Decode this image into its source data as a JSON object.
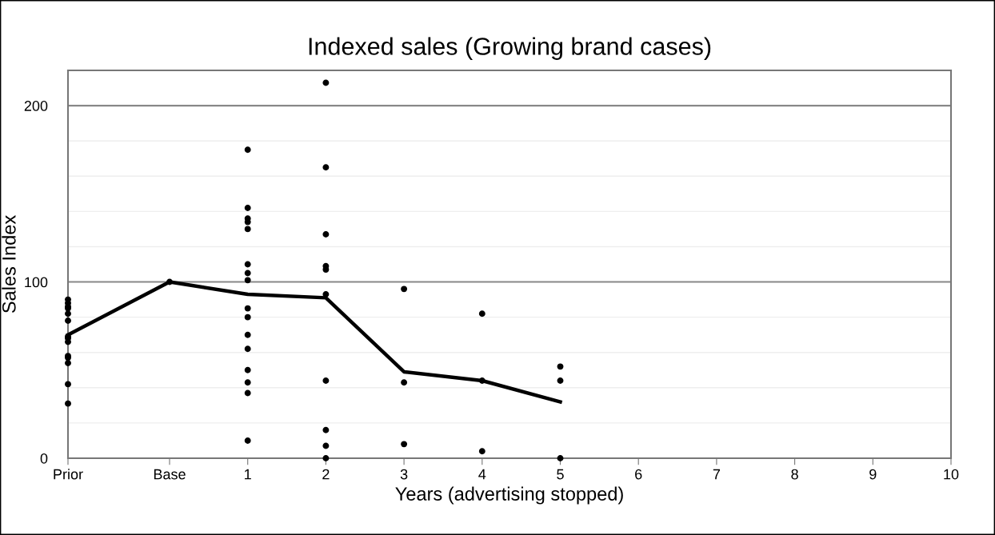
{
  "chart_data": {
    "type": "scatter",
    "title": "Indexed sales (Growing brand cases)",
    "xlabel": "Years (advertising stopped)",
    "ylabel": "Sales Index",
    "xlim": [
      -1.3,
      10
    ],
    "xticks": [
      {
        "value": -1.3,
        "label": "Prior"
      },
      {
        "value": 0,
        "label": "Base"
      },
      1,
      2,
      3,
      4,
      5,
      6,
      7,
      8,
      9,
      10
    ],
    "ylim": [
      0,
      220
    ],
    "yticks": [
      0,
      {
        "value": 20,
        "label": null
      },
      {
        "value": 40,
        "label": null
      },
      {
        "value": 60,
        "label": null
      },
      {
        "value": 80,
        "label": null
      },
      100,
      {
        "value": 120,
        "label": null
      },
      {
        "value": 140,
        "label": null
      },
      {
        "value": 160,
        "label": null
      },
      {
        "value": 180,
        "label": null
      },
      200
    ],
    "grid": "y",
    "legend": false,
    "series": [
      {
        "color": "#000000",
        "marker": "circle",
        "x": [
          -1.3,
          -1.3,
          -1.3,
          -1.3,
          -1.3,
          -1.3,
          -1.3,
          -1.3,
          -1.3,
          -1.3,
          -1.3,
          -1.3,
          -1.3,
          -1.3,
          0,
          1,
          1,
          1,
          1,
          1,
          1,
          1,
          1,
          1,
          1,
          1,
          1,
          1,
          1,
          1,
          1,
          2,
          2,
          2,
          2,
          2,
          2,
          2,
          2,
          2,
          2,
          3,
          3,
          3,
          4,
          4,
          4,
          5,
          5,
          5
        ],
        "values": [
          90,
          88,
          86,
          85,
          82,
          78,
          69,
          68,
          66,
          58,
          57,
          54,
          42,
          31,
          100,
          175,
          142,
          136,
          134,
          130,
          110,
          105,
          101,
          85,
          80,
          70,
          62,
          50,
          43,
          37,
          10,
          213,
          165,
          127,
          109,
          107,
          93,
          44,
          16,
          7,
          0,
          96,
          43,
          8,
          82,
          44,
          4,
          52,
          44,
          0
        ]
      },
      {
        "type": "line",
        "color": "#000000",
        "marker": "none",
        "line_style": "solid",
        "x": [
          -1.3,
          0,
          1,
          2,
          3,
          4,
          5
        ],
        "values": [
          70,
          100,
          93,
          91,
          49,
          44,
          32
        ]
      }
    ]
  }
}
